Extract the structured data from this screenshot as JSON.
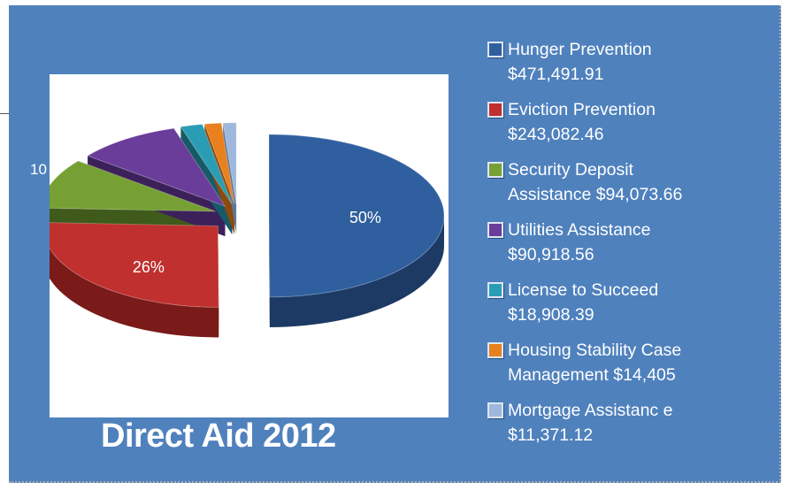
{
  "chart_data": {
    "type": "pie",
    "title": "Direct Aid 2012",
    "slices": [
      {
        "name": "Hunger Prevention",
        "amount": "$471,491.91",
        "value": 471491.91,
        "pct_label": "50%",
        "color": "#2f5f9e",
        "dark": "#1c3a63"
      },
      {
        "name": "Eviction Prevention",
        "amount": "$243,082.46",
        "value": 243082.46,
        "pct_label": "26%",
        "color": "#c0302e",
        "dark": "#7a1a19"
      },
      {
        "name": "Security Deposit Assistance",
        "name_line1": "Security Deposit",
        "amount": "Assistance $94,073.66",
        "value": 94073.66,
        "pct_label": "10",
        "color": "#76a034",
        "dark": "#3f5a1a"
      },
      {
        "name": "Utilities Assistance",
        "amount": "$90,918.56",
        "value": 90918.56,
        "pct_label": "",
        "color": "#6a3d9a",
        "dark": "#3c2059"
      },
      {
        "name": "License to Succeed",
        "amount": "$18,908.39",
        "value": 18908.39,
        "pct_label": "",
        "color": "#2a9db5",
        "dark": "#165a68"
      },
      {
        "name": "Housing Stability Case Management",
        "name_line1": "Housing Stability  Case",
        "amount": "Management $14,405",
        "value": 14405,
        "pct_label": "",
        "color": "#e8801e",
        "dark": "#8c4a0c"
      },
      {
        "name": "Mortgage Assistance",
        "name_line1": "Mortgage Assistanc e",
        "amount": "$11,371.12",
        "value": 11371.12,
        "pct_label": "",
        "color": "#9db8dc",
        "dark": "#5d7596"
      }
    ],
    "legend_placement": "right",
    "style": "3d-exploded-pie"
  },
  "legend": [
    {
      "line1": "Hunger Prevention",
      "line2": "$471,491.91"
    },
    {
      "line1": "Eviction Prevention",
      "line2": "$243,082.46"
    },
    {
      "line1": "Security Deposit",
      "line2": "Assistance $94,073.66"
    },
    {
      "line1": "Utilities Assistance",
      "line2": "$90,918.56"
    },
    {
      "line1": "License to Succeed",
      "line2": "$18,908.39"
    },
    {
      "line1": "Housing Stability  Case",
      "line2": "Management $14,405"
    },
    {
      "line1": "Mortgage Assistanc e",
      "line2": "$11,371.12"
    }
  ],
  "colors": {
    "slide_background": "#4f81bd",
    "chart_background": "#ffffff",
    "text": "#ffffff"
  }
}
